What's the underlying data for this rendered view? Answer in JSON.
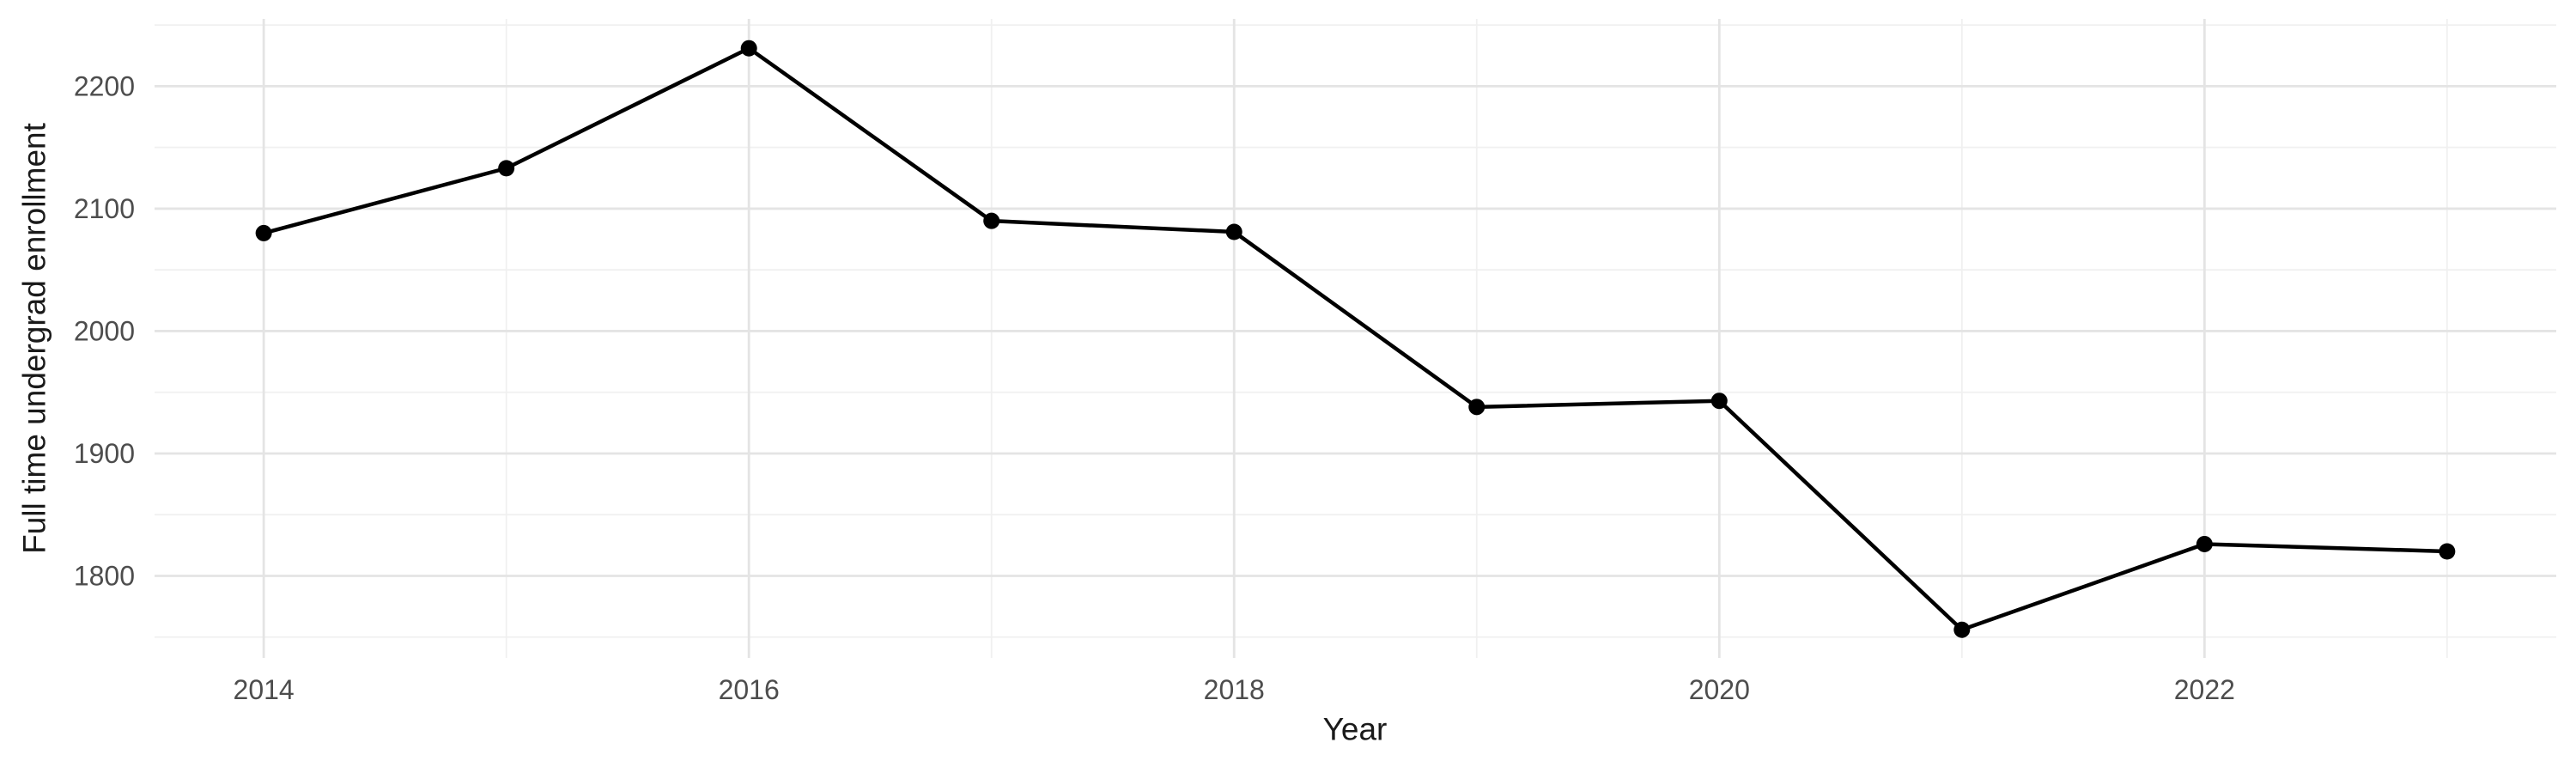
{
  "figure": {
    "background": "#FFFFFF"
  },
  "chart_data": {
    "type": "line",
    "title": "",
    "xlabel": "Year",
    "ylabel": "Full time undergrad enrollment",
    "x": [
      2014,
      2015,
      2016,
      2017,
      2018,
      2019,
      2020,
      2021,
      2022,
      2023
    ],
    "series": [
      {
        "name": "Full time undergrad enrollment",
        "values": [
          2080,
          2133,
          2231,
          2090,
          2081,
          1938,
          1943,
          1756,
          1826,
          1820
        ]
      }
    ],
    "x_tick_labels": [
      "2014",
      "2016",
      "2018",
      "2020",
      "2022"
    ],
    "x_major_breaks": [
      2014,
      2016,
      2018,
      2020,
      2022
    ],
    "x_minor_breaks": [
      2015,
      2017,
      2019,
      2021,
      2023
    ],
    "y_tick_labels": [
      "1800",
      "1900",
      "2000",
      "2100",
      "2200"
    ],
    "y_major_breaks": [
      1800,
      1900,
      2000,
      2100,
      2200
    ],
    "y_minor_breaks": [
      1750,
      1850,
      1950,
      2050,
      2150,
      2250
    ],
    "xlim": [
      2013.55,
      2023.45
    ],
    "ylim": [
      1733,
      2255
    ],
    "grid": "major-and-minor",
    "legend": "none",
    "marker": "filled-circle",
    "colors": {
      "line": "#000000",
      "point": "#000000",
      "grid_major": "#E4E4E4",
      "grid_minor": "#F0F0F0",
      "tick_label": "#4D4D4D",
      "axis_title": "#1A1A1A",
      "background": "#FFFFFF"
    }
  }
}
